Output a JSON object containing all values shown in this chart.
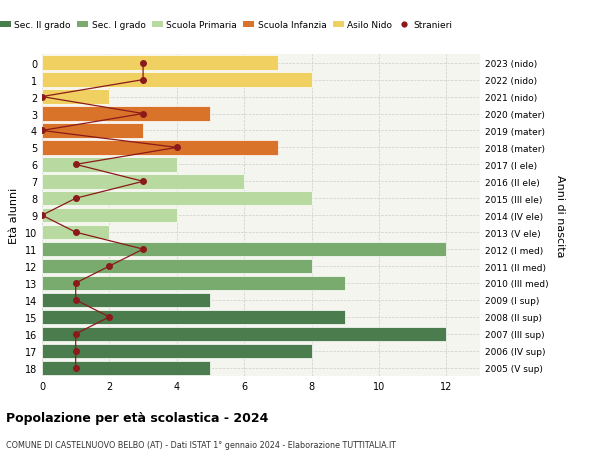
{
  "ages": [
    18,
    17,
    16,
    15,
    14,
    13,
    12,
    11,
    10,
    9,
    8,
    7,
    6,
    5,
    4,
    3,
    2,
    1,
    0
  ],
  "years_by_age": {
    "18": "2005 (V sup)",
    "17": "2006 (IV sup)",
    "16": "2007 (III sup)",
    "15": "2008 (II sup)",
    "14": "2009 (I sup)",
    "13": "2010 (III med)",
    "12": "2011 (II med)",
    "11": "2012 (I med)",
    "10": "2013 (V ele)",
    "9": "2014 (IV ele)",
    "8": "2015 (III ele)",
    "7": "2016 (II ele)",
    "6": "2017 (I ele)",
    "5": "2018 (mater)",
    "4": "2019 (mater)",
    "3": "2020 (mater)",
    "2": "2021 (nido)",
    "1": "2022 (nido)",
    "0": "2023 (nido)"
  },
  "bar_values_by_age": {
    "18": 5,
    "17": 8,
    "16": 12,
    "15": 9,
    "14": 5,
    "13": 9,
    "12": 8,
    "11": 12,
    "10": 2,
    "9": 4,
    "8": 8,
    "7": 6,
    "6": 4,
    "5": 7,
    "4": 3,
    "3": 5,
    "2": 2,
    "1": 8,
    "0": 7
  },
  "stranieri_by_age": {
    "18": 1,
    "17": 1,
    "16": 1,
    "15": 2,
    "14": 1,
    "13": 1,
    "12": 2,
    "11": 3,
    "10": 1,
    "9": 0,
    "8": 1,
    "7": 3,
    "6": 1,
    "5": 4,
    "4": 0,
    "3": 3,
    "2": 0,
    "1": 3,
    "0": 3
  },
  "bar_colors_by_age": {
    "18": "#4a7c4e",
    "17": "#4a7c4e",
    "16": "#4a7c4e",
    "15": "#4a7c4e",
    "14": "#4a7c4e",
    "13": "#7aab6e",
    "12": "#7aab6e",
    "11": "#7aab6e",
    "10": "#b8d9a0",
    "9": "#b8d9a0",
    "8": "#b8d9a0",
    "7": "#b8d9a0",
    "6": "#b8d9a0",
    "5": "#d9732a",
    "4": "#d9732a",
    "3": "#d9732a",
    "2": "#f0d060",
    "1": "#f0d060",
    "0": "#f0d060"
  },
  "legend_labels": [
    "Sec. II grado",
    "Sec. I grado",
    "Scuola Primaria",
    "Scuola Infanzia",
    "Asilo Nido",
    "Stranieri"
  ],
  "legend_colors": [
    "#4a7c4e",
    "#7aab6e",
    "#b8d9a0",
    "#d9732a",
    "#f0d060",
    "#8b1a1a"
  ],
  "stranieri_line_color": "#8b1a1a",
  "stranieri_marker_color": "#8b1a1a",
  "title": "Popolazione per età scolastica - 2024",
  "subtitle": "COMUNE DI CASTELNUOVO BELBO (AT) - Dati ISTAT 1° gennaio 2024 - Elaborazione TUTTITALIA.IT",
  "ylabel_left": "Età alunni",
  "ylabel_right": "Anni di nascita",
  "xlim": [
    0,
    13
  ],
  "ylim_min": -0.5,
  "ylim_max": 18.5,
  "background_color": "#ffffff",
  "plot_bg_color": "#f5f5f0",
  "grid_color": "#cccccc",
  "bar_height": 0.85
}
